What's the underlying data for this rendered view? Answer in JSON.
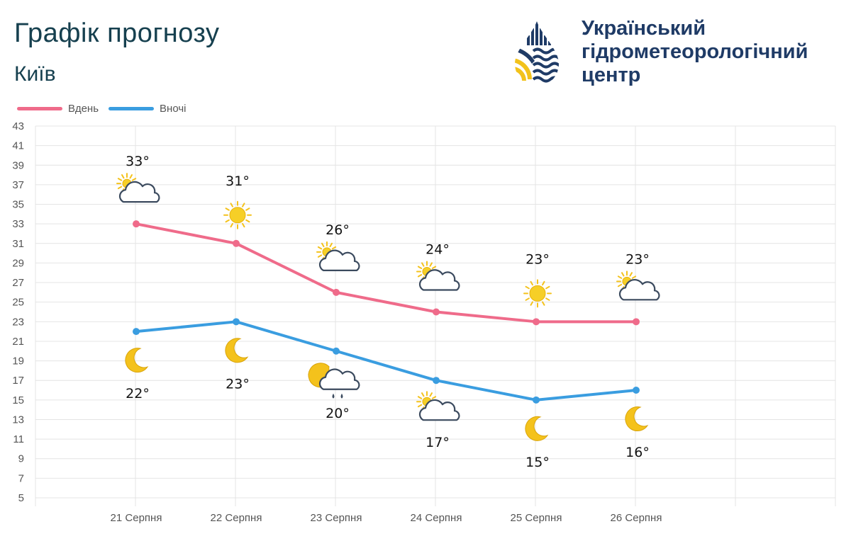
{
  "header": {
    "title": "Графік прогнозу",
    "city": "Київ"
  },
  "logo": {
    "line1": "Український",
    "line2": "гідрометеорологічний",
    "line3": "центр"
  },
  "chart_data": {
    "type": "line",
    "categories": [
      "21 Серпня",
      "22 Серпня",
      "23 Серпня",
      "24 Серпня",
      "25 Серпня",
      "26 Серпня"
    ],
    "series": [
      {
        "name": "Вдень",
        "color": "#ef6b8a",
        "values": [
          33,
          31,
          26,
          24,
          23,
          23
        ],
        "labels": [
          "33°",
          "31°",
          "26°",
          "24°",
          "23°",
          "23°"
        ],
        "icons": [
          "sun-cloud-icon",
          "sun-icon",
          "sun-cloud-icon",
          "sun-cloud-icon",
          "sun-icon",
          "sun-cloud-icon"
        ]
      },
      {
        "name": "Вночі",
        "color": "#3a9de0",
        "values": [
          22,
          23,
          20,
          17,
          15,
          16
        ],
        "labels": [
          "22°",
          "23°",
          "20°",
          "17°",
          "15°",
          "16°"
        ],
        "icons": [
          "moon-icon",
          "moon-icon",
          "moon-cloud-rain-icon",
          "sun-cloud-icon",
          "moon-icon",
          "moon-icon"
        ]
      }
    ],
    "ylim": [
      5,
      43
    ],
    "yticks": [
      5,
      7,
      9,
      11,
      13,
      15,
      17,
      19,
      21,
      23,
      25,
      27,
      29,
      31,
      33,
      35,
      37,
      39,
      41,
      43
    ],
    "grid": true,
    "legend": "top-left"
  }
}
